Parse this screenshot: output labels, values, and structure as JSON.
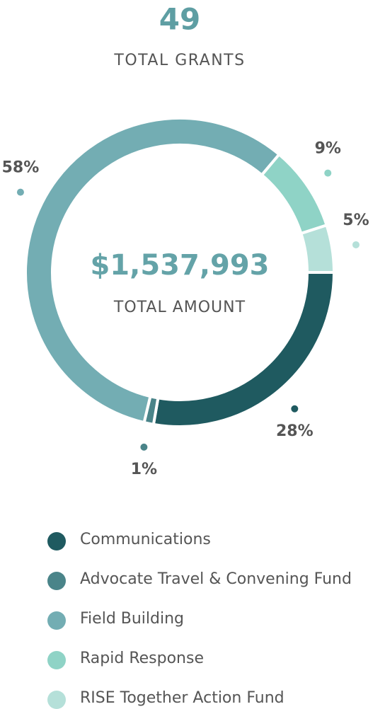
{
  "chart_data": {
    "type": "donut",
    "headline": "49",
    "headline_label": "TOTAL GRANTS",
    "center_value": "$1,537,993",
    "center_label": "TOTAL AMOUNT",
    "categories": [
      "Communications",
      "Advocate Travel & Convening Fund",
      "Field Building",
      "Rapid Response",
      "RISE Together Action Fund"
    ],
    "values": [
      28,
      1,
      58,
      9,
      5
    ],
    "value_labels": [
      "28%",
      "1%",
      "58%",
      "9%",
      "5%"
    ],
    "colors": [
      "#1f5a60",
      "#4a8489",
      "#73adb3",
      "#8fd3c6",
      "#b5e0d9"
    ]
  }
}
